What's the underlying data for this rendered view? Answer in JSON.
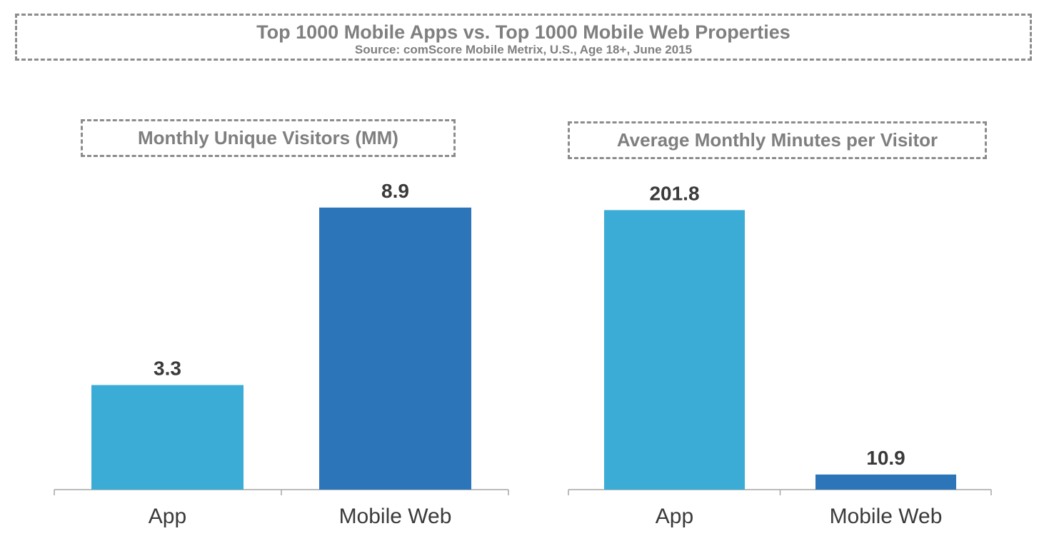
{
  "header": {
    "title": "Top 1000 Mobile Apps vs. Top 1000 Mobile Web Properties",
    "source": "Source: comScore Mobile Metrix, U.S., Age 18+, June 2015"
  },
  "colors": {
    "app": "#3bacd6",
    "mobile_web": "#2b75b8",
    "axis": "#a6a6a6"
  },
  "chart_data": [
    {
      "type": "bar",
      "title": "Monthly Unique Visitors (MM)",
      "categories": [
        "App",
        "Mobile Web"
      ],
      "values": [
        3.3,
        8.9
      ],
      "value_labels": [
        "3.3",
        "8.9"
      ],
      "xlabel": "",
      "ylabel": "",
      "ylim": [
        0,
        10.0
      ],
      "grid": false,
      "legend": "none"
    },
    {
      "type": "bar",
      "title": "Average Monthly Minutes per Visitor",
      "categories": [
        "App",
        "Mobile Web"
      ],
      "values": [
        201.8,
        10.9
      ],
      "value_labels": [
        "201.8",
        "10.9"
      ],
      "xlabel": "",
      "ylabel": "",
      "ylim": [
        0,
        228.8
      ],
      "grid": false,
      "legend": "none"
    }
  ]
}
